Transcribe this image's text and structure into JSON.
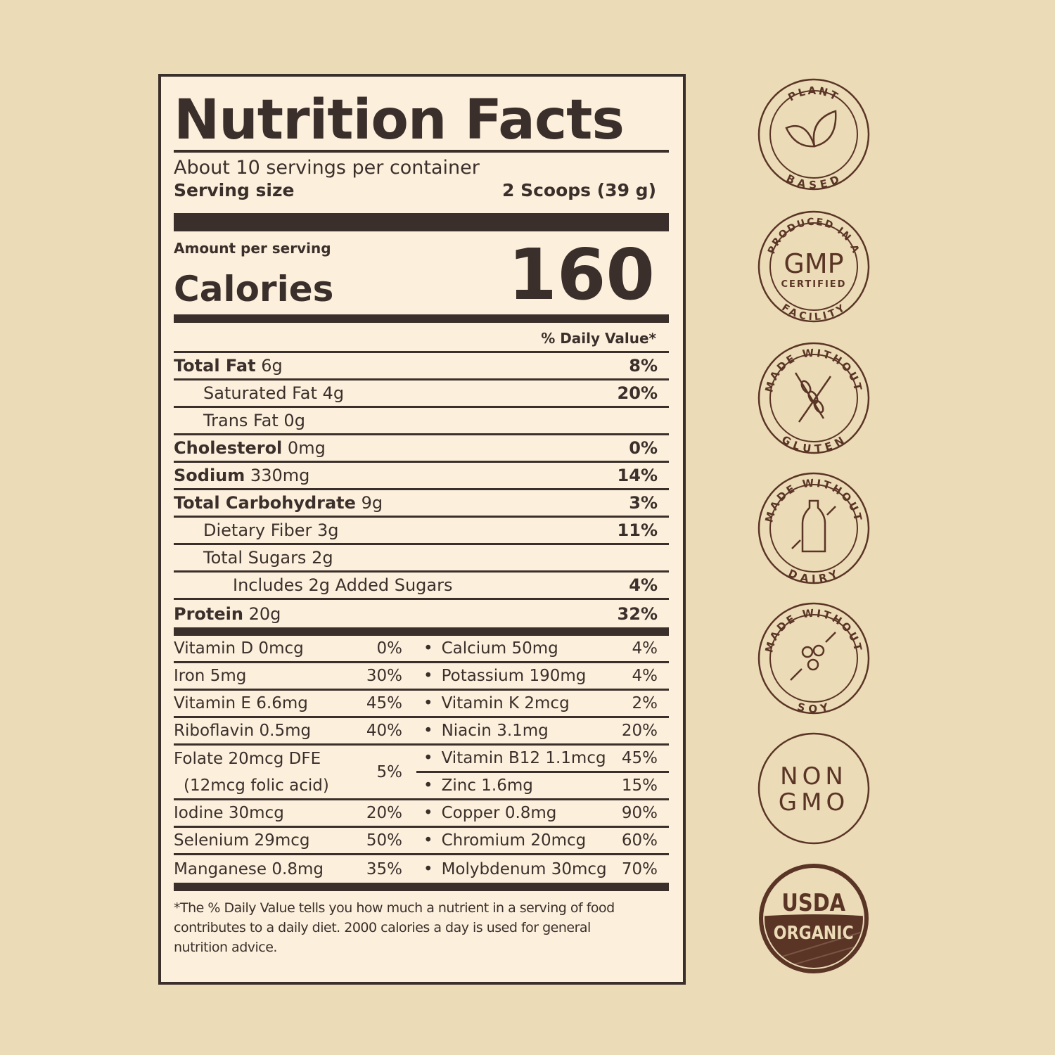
{
  "title": "Nutrition Facts",
  "servings_per_container": "About 10 servings per container",
  "serving_size_label": "Serving size",
  "serving_size_value": "2 Scoops (39 g)",
  "amount_per_serving": "Amount per serving",
  "calories_label": "Calories",
  "calories_value": "160",
  "daily_value_header": "% Daily Value*",
  "nutrients": [
    {
      "name": "Total Fat",
      "amount": "6g",
      "dv": "8%",
      "bold": true,
      "indent": 0
    },
    {
      "name": "Saturated Fat",
      "amount": "4g",
      "dv": "20%",
      "bold": false,
      "indent": 1
    },
    {
      "name": "Trans Fat",
      "amount": "0g",
      "dv": "",
      "bold": false,
      "indent": 1
    },
    {
      "name": "Cholesterol",
      "amount": "0mg",
      "dv": "0%",
      "bold": true,
      "indent": 0
    },
    {
      "name": "Sodium",
      "amount": "330mg",
      "dv": "14%",
      "bold": true,
      "indent": 0
    },
    {
      "name": "Total Carbohydrate",
      "amount": "9g",
      "dv": "3%",
      "bold": true,
      "indent": 0
    },
    {
      "name": "Dietary Fiber",
      "amount": "3g",
      "dv": "11%",
      "bold": false,
      "indent": 1
    },
    {
      "name": "Total Sugars",
      "amount": "2g",
      "dv": "",
      "bold": false,
      "indent": 1
    },
    {
      "name": "Includes 2g Added Sugars",
      "amount": "",
      "dv": "4%",
      "bold": false,
      "indent": 2
    },
    {
      "name": "Protein",
      "amount": "20g",
      "dv": "32%",
      "bold": true,
      "indent": 0
    }
  ],
  "vitamins_left": [
    {
      "name": "Vitamin D 0mcg",
      "dv": "0%"
    },
    {
      "name": "Iron 5mg",
      "dv": "30%"
    },
    {
      "name": "Vitamin E 6.6mg",
      "dv": "45%"
    },
    {
      "name": "Riboflavin 0.5mg",
      "dv": "40%"
    },
    {
      "name": "Folate 20mcg DFE",
      "sub": "(12mcg folic acid)",
      "dv": "5%"
    },
    {
      "name": "Iodine 30mcg",
      "dv": "20%"
    },
    {
      "name": "Selenium 29mcg",
      "dv": "50%"
    },
    {
      "name": "Manganese 0.8mg",
      "dv": "35%"
    }
  ],
  "vitamins_right": [
    {
      "name": "Calcium 50mg",
      "dv": "4%"
    },
    {
      "name": "Potassium 190mg",
      "dv": "4%"
    },
    {
      "name": "Vitamin K 2mcg",
      "dv": "2%"
    },
    {
      "name": "Niacin 3.1mg",
      "dv": "20%"
    },
    {
      "name": "Vitamin B12 1.1mcg",
      "dv": "45%"
    },
    {
      "name": "Zinc 1.6mg",
      "dv": "15%"
    },
    {
      "name": "Copper 0.8mg",
      "dv": "90%"
    },
    {
      "name": "Chromium 20mcg",
      "dv": "60%"
    },
    {
      "name": "Molybdenum 30mcg",
      "dv": "70%"
    }
  ],
  "footnote": [
    "*The % Daily Value tells you how much a nutrient in a serving of food",
    "contributes to a daily diet. 2000 calories a day is used for general",
    "nutrition advice."
  ],
  "badges": {
    "plant": {
      "top": "PLANT",
      "bottom": "BASED",
      "icon": "leaf-icon"
    },
    "gmp": {
      "top": "PRODUCED IN A",
      "center": "GMP",
      "sub": "CERTIFIED",
      "bottom": "FACILITY"
    },
    "gluten": {
      "top": "MADE WITHOUT",
      "bottom": "GLUTEN",
      "icon": "wheat-icon"
    },
    "dairy": {
      "top": "MADE WITHOUT",
      "bottom": "DAIRY",
      "icon": "milk-bottle-icon"
    },
    "soy": {
      "top": "MADE WITHOUT",
      "bottom": "SOY",
      "icon": "soybean-icon"
    },
    "nongmo": {
      "line1": "NON",
      "line2": "GMO"
    },
    "usda": {
      "line1": "USDA",
      "line2": "ORGANIC"
    }
  },
  "colors": {
    "background": "#ecdbb7",
    "label": "#fcf0dd",
    "ink": "#3b2f2b",
    "badge": "#5a3526"
  }
}
